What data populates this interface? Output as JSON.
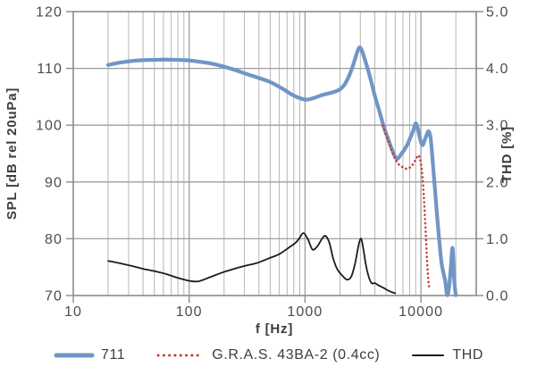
{
  "figure": {
    "x_title": "f [Hz]",
    "y_left_title": "SPL [dB rel 20uPa]",
    "y_right_title": "THD [%]"
  },
  "colors": {
    "series_711": "#7195c6",
    "series_gras": "#cc3b34",
    "series_thd": "#1c1c1c",
    "grid_minor": "#b6b6b6",
    "grid_major": "#9e9e9e",
    "frame": "#8b8b8b",
    "tick_text": "#4c4c4c",
    "label_text": "#3d3d3d"
  },
  "legend": {
    "items": [
      {
        "label": "711",
        "swatch": "thick-line",
        "color": "#7195c6"
      },
      {
        "label": "G.R.A.S. 43BA-2 (0.4cc)",
        "swatch": "dotted-line",
        "color": "#cc3b34"
      },
      {
        "label": "THD",
        "swatch": "thin-line",
        "color": "#1c1c1c"
      }
    ]
  },
  "chart_data": {
    "type": "line",
    "title": "",
    "x_axis": {
      "label": "f [Hz]",
      "scale": "log",
      "min": 10,
      "max": 30000,
      "major_ticks": [
        10,
        100,
        1000,
        10000
      ],
      "tick_labels": [
        "10",
        "100",
        "1000",
        "10000"
      ],
      "minor_gridlines": [
        20,
        30,
        40,
        50,
        60,
        70,
        80,
        90,
        200,
        300,
        400,
        500,
        600,
        700,
        800,
        900,
        2000,
        3000,
        4000,
        5000,
        6000,
        7000,
        8000,
        9000,
        20000
      ]
    },
    "y_axis_left": {
      "label": "SPL [dB rel 20uPa]",
      "min": 70,
      "max": 120,
      "ticks": [
        70,
        80,
        90,
        100,
        110,
        120
      ],
      "tick_labels": [
        "70",
        "80",
        "90",
        "100",
        "110",
        "120"
      ]
    },
    "y_axis_right": {
      "label": "THD [%]",
      "min": 0.0,
      "max": 5.0,
      "ticks": [
        0,
        1,
        2,
        3,
        4,
        5
      ],
      "tick_labels": [
        "0.0",
        "1.0",
        "2.0",
        "3.0",
        "4.0",
        "5.0"
      ]
    },
    "grid": {
      "vertical": "log minor + decades",
      "horizontal": "every 10 dB / 1.0 %"
    },
    "legend_position": "bottom-center",
    "series": [
      {
        "name": "711",
        "axis": "left",
        "unit": "dB",
        "style": "solid",
        "stroke_width": 4.2,
        "color": "#7195c6",
        "points": [
          [
            20,
            110.6
          ],
          [
            25,
            111.0
          ],
          [
            32,
            111.3
          ],
          [
            40,
            111.45
          ],
          [
            50,
            111.5
          ],
          [
            63,
            111.55
          ],
          [
            80,
            111.5
          ],
          [
            100,
            111.4
          ],
          [
            125,
            111.15
          ],
          [
            160,
            110.8
          ],
          [
            200,
            110.3
          ],
          [
            250,
            109.7
          ],
          [
            315,
            109.0
          ],
          [
            400,
            108.3
          ],
          [
            500,
            107.6
          ],
          [
            630,
            106.5
          ],
          [
            800,
            105.2
          ],
          [
            950,
            104.6
          ],
          [
            1050,
            104.5
          ],
          [
            1200,
            104.8
          ],
          [
            1400,
            105.3
          ],
          [
            1600,
            105.6
          ],
          [
            1800,
            105.9
          ],
          [
            2000,
            106.3
          ],
          [
            2200,
            107.2
          ],
          [
            2400,
            108.7
          ],
          [
            2600,
            110.6
          ],
          [
            2800,
            112.7
          ],
          [
            2950,
            113.7
          ],
          [
            3100,
            113.1
          ],
          [
            3300,
            111.4
          ],
          [
            3600,
            108.8
          ],
          [
            4000,
            105.2
          ],
          [
            4400,
            102.3
          ],
          [
            4800,
            99.6
          ],
          [
            5200,
            97.6
          ],
          [
            5600,
            95.8
          ],
          [
            6000,
            94.4
          ],
          [
            6300,
            94.1
          ],
          [
            6700,
            94.8
          ],
          [
            7100,
            95.5
          ],
          [
            7600,
            96.5
          ],
          [
            8100,
            97.8
          ],
          [
            8600,
            99.1
          ],
          [
            9000,
            100.3
          ],
          [
            9400,
            99.4
          ],
          [
            9800,
            97.7
          ],
          [
            10300,
            96.5
          ],
          [
            10800,
            97.4
          ],
          [
            11300,
            98.5
          ],
          [
            11700,
            98.9
          ],
          [
            12100,
            97.8
          ],
          [
            12500,
            94.8
          ],
          [
            13000,
            90.5
          ],
          [
            13600,
            85.5
          ],
          [
            14200,
            81.0
          ],
          [
            15000,
            76.0
          ],
          [
            15700,
            73.8
          ],
          [
            16200,
            72.6
          ],
          [
            16700,
            70.3
          ],
          [
            17000,
            70.1
          ],
          [
            17600,
            72.0
          ],
          [
            18200,
            75.5
          ],
          [
            18700,
            78.4
          ],
          [
            19100,
            75.5
          ],
          [
            19500,
            72.0
          ],
          [
            20000,
            70.05
          ]
        ]
      },
      {
        "name": "G.R.A.S. 43BA-2 (0.4cc)",
        "axis": "left",
        "unit": "dB",
        "style": "dotted",
        "stroke_width": 2.6,
        "color": "#cc3b34",
        "points": [
          [
            4700,
            99.9
          ],
          [
            5000,
            98.3
          ],
          [
            5400,
            96.4
          ],
          [
            5800,
            94.7
          ],
          [
            6200,
            93.5
          ],
          [
            6600,
            92.9
          ],
          [
            7100,
            92.5
          ],
          [
            7600,
            92.3
          ],
          [
            8100,
            92.6
          ],
          [
            8600,
            93.2
          ],
          [
            9100,
            94.1
          ],
          [
            9500,
            94.7
          ],
          [
            9800,
            94.1
          ],
          [
            10100,
            92.6
          ],
          [
            10400,
            89.8
          ],
          [
            10700,
            85.8
          ],
          [
            11000,
            81.0
          ],
          [
            11300,
            76.0
          ],
          [
            11600,
            72.5
          ],
          [
            11900,
            71.0
          ]
        ]
      },
      {
        "name": "THD",
        "axis": "right",
        "unit": "%",
        "style": "solid",
        "stroke_width": 1.8,
        "color": "#1c1c1c",
        "points": [
          [
            20,
            0.61
          ],
          [
            25,
            0.57
          ],
          [
            32,
            0.52
          ],
          [
            40,
            0.47
          ],
          [
            50,
            0.43
          ],
          [
            63,
            0.38
          ],
          [
            80,
            0.31
          ],
          [
            100,
            0.26
          ],
          [
            120,
            0.25
          ],
          [
            150,
            0.32
          ],
          [
            190,
            0.4
          ],
          [
            235,
            0.46
          ],
          [
            300,
            0.52
          ],
          [
            380,
            0.57
          ],
          [
            480,
            0.65
          ],
          [
            600,
            0.73
          ],
          [
            720,
            0.84
          ],
          [
            830,
            0.93
          ],
          [
            900,
            1.02
          ],
          [
            970,
            1.1
          ],
          [
            1060,
            0.99
          ],
          [
            1160,
            0.81
          ],
          [
            1280,
            0.87
          ],
          [
            1400,
            1.0
          ],
          [
            1500,
            1.05
          ],
          [
            1620,
            0.93
          ],
          [
            1750,
            0.65
          ],
          [
            1900,
            0.46
          ],
          [
            2100,
            0.35
          ],
          [
            2300,
            0.28
          ],
          [
            2500,
            0.33
          ],
          [
            2700,
            0.56
          ],
          [
            2900,
            0.89
          ],
          [
            3050,
            1.0
          ],
          [
            3200,
            0.79
          ],
          [
            3350,
            0.54
          ],
          [
            3500,
            0.37
          ],
          [
            3650,
            0.26
          ],
          [
            3800,
            0.21
          ],
          [
            4000,
            0.22
          ],
          [
            4300,
            0.18
          ],
          [
            4700,
            0.14
          ],
          [
            5200,
            0.09
          ],
          [
            5600,
            0.06
          ],
          [
            6000,
            0.04
          ]
        ]
      }
    ]
  }
}
